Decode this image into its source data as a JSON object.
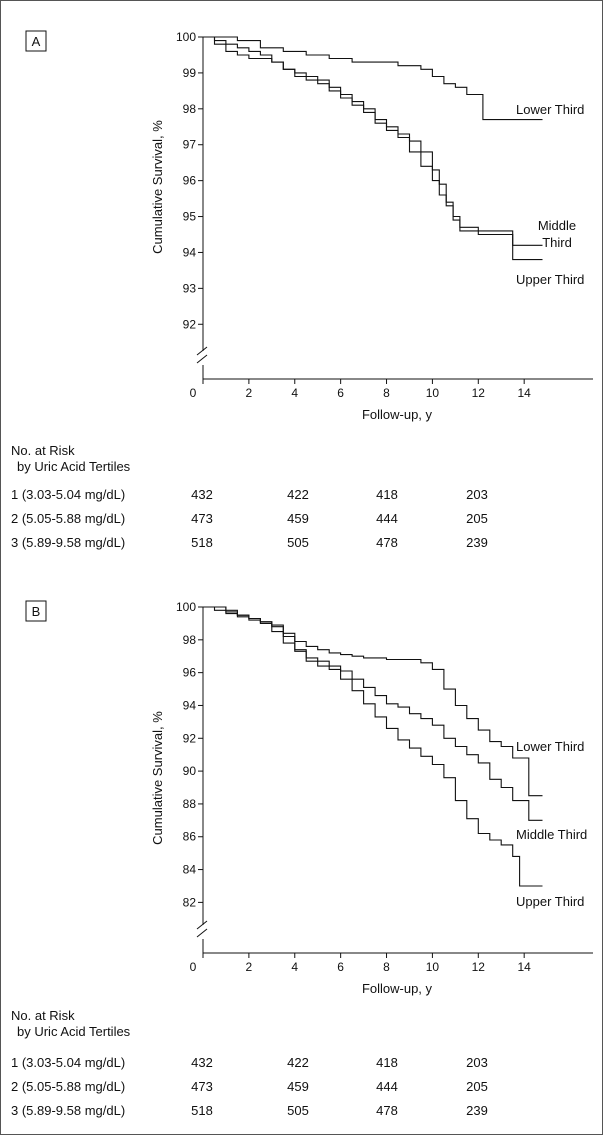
{
  "chart_data": [
    {
      "type": "line",
      "panel_label": "A",
      "xlabel": "Follow-up, y",
      "ylabel": "Cumulative Survival, %",
      "x_ticks": [
        0,
        2,
        4,
        6,
        8,
        10,
        12,
        14
      ],
      "y_ticks": [
        92,
        93,
        94,
        95,
        96,
        97,
        98,
        99,
        100
      ],
      "xlim": [
        0,
        17
      ],
      "ylim": [
        91.2,
        100
      ],
      "axis_break": true,
      "series": [
        {
          "name": "Lower Third",
          "label_lines": [
            "Lower Third"
          ],
          "points": [
            [
              0,
              100
            ],
            [
              1.5,
              99.9
            ],
            [
              2.5,
              99.7
            ],
            [
              3.5,
              99.6
            ],
            [
              4.5,
              99.5
            ],
            [
              5.5,
              99.4
            ],
            [
              6.5,
              99.3
            ],
            [
              7.5,
              99.3
            ],
            [
              8.5,
              99.2
            ],
            [
              9.5,
              99.1
            ],
            [
              10,
              98.9
            ],
            [
              10.5,
              98.7
            ],
            [
              11,
              98.6
            ],
            [
              11.5,
              98.4
            ],
            [
              12.2,
              97.7
            ],
            [
              14.8,
              97.7
            ]
          ]
        },
        {
          "name": "Middle Third",
          "label_lines": [
            "Middle",
            "Third"
          ],
          "points": [
            [
              0,
              100
            ],
            [
              0.5,
              99.9
            ],
            [
              1,
              99.8
            ],
            [
              1.5,
              99.7
            ],
            [
              2,
              99.6
            ],
            [
              2.5,
              99.5
            ],
            [
              3,
              99.3
            ],
            [
              3.5,
              99.1
            ],
            [
              4,
              99.0
            ],
            [
              4.5,
              98.9
            ],
            [
              5,
              98.8
            ],
            [
              5.5,
              98.6
            ],
            [
              6,
              98.4
            ],
            [
              6.5,
              98.2
            ],
            [
              7,
              98.0
            ],
            [
              7.5,
              97.7
            ],
            [
              8,
              97.5
            ],
            [
              8.5,
              97.3
            ],
            [
              9,
              97.1
            ],
            [
              9.5,
              96.8
            ],
            [
              10,
              96.3
            ],
            [
              10.3,
              95.9
            ],
            [
              10.6,
              95.4
            ],
            [
              10.9,
              94.9
            ],
            [
              11.2,
              94.6
            ],
            [
              12,
              94.6
            ],
            [
              13.5,
              94.6
            ],
            [
              13.5,
              94.2
            ],
            [
              14.8,
              94.2
            ]
          ]
        },
        {
          "name": "Upper Third",
          "label_lines": [
            "Upper Third"
          ],
          "points": [
            [
              0,
              100
            ],
            [
              0.5,
              99.8
            ],
            [
              1,
              99.6
            ],
            [
              1.5,
              99.5
            ],
            [
              2,
              99.4
            ],
            [
              3,
              99.3
            ],
            [
              3.5,
              99.1
            ],
            [
              4,
              98.9
            ],
            [
              4.5,
              98.8
            ],
            [
              5,
              98.7
            ],
            [
              5.5,
              98.5
            ],
            [
              6,
              98.3
            ],
            [
              6.5,
              98.1
            ],
            [
              7,
              97.9
            ],
            [
              7.5,
              97.6
            ],
            [
              8,
              97.4
            ],
            [
              8.5,
              97.2
            ],
            [
              9,
              96.8
            ],
            [
              9.5,
              96.4
            ],
            [
              10,
              96.0
            ],
            [
              10.3,
              95.6
            ],
            [
              10.6,
              95.3
            ],
            [
              10.9,
              95.0
            ],
            [
              11.2,
              94.7
            ],
            [
              12,
              94.5
            ],
            [
              13,
              94.5
            ],
            [
              13.5,
              94.0
            ],
            [
              13.5,
              93.8
            ],
            [
              14.8,
              93.8
            ]
          ]
        }
      ],
      "risk_table": {
        "title_line1": "No. at Risk",
        "title_line2": "by Uric Acid Tertiles",
        "rows": [
          {
            "label": "1 (3.03-5.04 mg/dL)",
            "values": [
              "432",
              "422",
              "418",
              "203"
            ]
          },
          {
            "label": "2 (5.05-5.88 mg/dL)",
            "values": [
              "473",
              "459",
              "444",
              "205"
            ]
          },
          {
            "label": "3 (5.89-9.58 mg/dL)",
            "values": [
              "518",
              "505",
              "478",
              "239"
            ]
          }
        ]
      }
    },
    {
      "type": "line",
      "panel_label": "B",
      "xlabel": "Follow-up, y",
      "ylabel": "Cumulative Survival, %",
      "x_ticks": [
        0,
        2,
        4,
        6,
        8,
        10,
        12,
        14
      ],
      "y_ticks": [
        82,
        84,
        86,
        88,
        90,
        92,
        94,
        96,
        98,
        100
      ],
      "xlim": [
        0,
        17
      ],
      "ylim": [
        80.5,
        100
      ],
      "axis_break": true,
      "series": [
        {
          "name": "Lower Third",
          "label_lines": [
            "Lower Third"
          ],
          "points": [
            [
              0,
              100
            ],
            [
              1,
              99.7
            ],
            [
              1.5,
              99.5
            ],
            [
              2,
              99.3
            ],
            [
              2.5,
              99.1
            ],
            [
              3,
              98.8
            ],
            [
              3.5,
              98.4
            ],
            [
              4,
              97.9
            ],
            [
              4.5,
              97.6
            ],
            [
              5,
              97.4
            ],
            [
              5.5,
              97.2
            ],
            [
              6,
              97.1
            ],
            [
              6.5,
              97.0
            ],
            [
              7,
              96.9
            ],
            [
              7.5,
              96.9
            ],
            [
              8,
              96.8
            ],
            [
              8.5,
              96.8
            ],
            [
              9,
              96.8
            ],
            [
              9.5,
              96.6
            ],
            [
              10,
              96.2
            ],
            [
              10.5,
              95.0
            ],
            [
              11,
              94.0
            ],
            [
              11.5,
              93.2
            ],
            [
              12,
              92.5
            ],
            [
              12.5,
              91.8
            ],
            [
              13,
              91.5
            ],
            [
              13.5,
              90.8
            ],
            [
              14.2,
              90.8
            ],
            [
              14.2,
              88.5
            ],
            [
              14.8,
              88.5
            ]
          ]
        },
        {
          "name": "Middle Third",
          "label_lines": [
            "Middle Third"
          ],
          "points": [
            [
              0,
              100
            ],
            [
              1,
              99.8
            ],
            [
              1.5,
              99.5
            ],
            [
              2,
              99.3
            ],
            [
              2.5,
              99.1
            ],
            [
              3,
              98.9
            ],
            [
              3.5,
              98.2
            ],
            [
              4,
              97.4
            ],
            [
              4.5,
              96.9
            ],
            [
              5,
              96.7
            ],
            [
              5.5,
              96.4
            ],
            [
              6,
              96.1
            ],
            [
              6.5,
              95.6
            ],
            [
              7,
              95.1
            ],
            [
              7.5,
              94.6
            ],
            [
              8,
              94.1
            ],
            [
              8.5,
              93.9
            ],
            [
              9,
              93.5
            ],
            [
              9.5,
              93.2
            ],
            [
              10,
              92.8
            ],
            [
              10.5,
              92.0
            ],
            [
              11,
              91.5
            ],
            [
              11.5,
              91.0
            ],
            [
              12,
              90.5
            ],
            [
              12.5,
              89.5
            ],
            [
              13,
              89.0
            ],
            [
              13.5,
              88.2
            ],
            [
              14.2,
              88.2
            ],
            [
              14.2,
              87.0
            ],
            [
              14.8,
              87.0
            ]
          ]
        },
        {
          "name": "Upper Third",
          "label_lines": [
            "Upper Third"
          ],
          "points": [
            [
              0,
              100
            ],
            [
              0.5,
              99.8
            ],
            [
              1,
              99.6
            ],
            [
              1.5,
              99.4
            ],
            [
              2,
              99.2
            ],
            [
              2.5,
              99.0
            ],
            [
              3,
              98.5
            ],
            [
              3.5,
              97.8
            ],
            [
              4,
              97.3
            ],
            [
              4.5,
              96.7
            ],
            [
              5,
              96.4
            ],
            [
              5.5,
              96.2
            ],
            [
              6,
              95.6
            ],
            [
              6.5,
              94.9
            ],
            [
              7,
              94.1
            ],
            [
              7.5,
              93.3
            ],
            [
              8,
              92.6
            ],
            [
              8.5,
              91.9
            ],
            [
              9,
              91.4
            ],
            [
              9.5,
              90.9
            ],
            [
              10,
              90.4
            ],
            [
              10.5,
              89.6
            ],
            [
              11,
              88.2
            ],
            [
              11.5,
              87.1
            ],
            [
              12,
              86.2
            ],
            [
              12.5,
              85.8
            ],
            [
              13,
              85.5
            ],
            [
              13.5,
              84.8
            ],
            [
              13.8,
              84.8
            ],
            [
              13.8,
              83.0
            ],
            [
              14.8,
              83.0
            ]
          ]
        }
      ],
      "risk_table": {
        "title_line1": "No. at Risk",
        "title_line2": "by Uric Acid Tertiles",
        "rows": [
          {
            "label": "1 (3.03-5.04 mg/dL)",
            "values": [
              "432",
              "422",
              "418",
              "203"
            ]
          },
          {
            "label": "2 (5.05-5.88 mg/dL)",
            "values": [
              "473",
              "459",
              "444",
              "205"
            ]
          },
          {
            "label": "3 (5.89-9.58 mg/dL)",
            "values": [
              "518",
              "505",
              "478",
              "239"
            ]
          }
        ]
      }
    }
  ]
}
